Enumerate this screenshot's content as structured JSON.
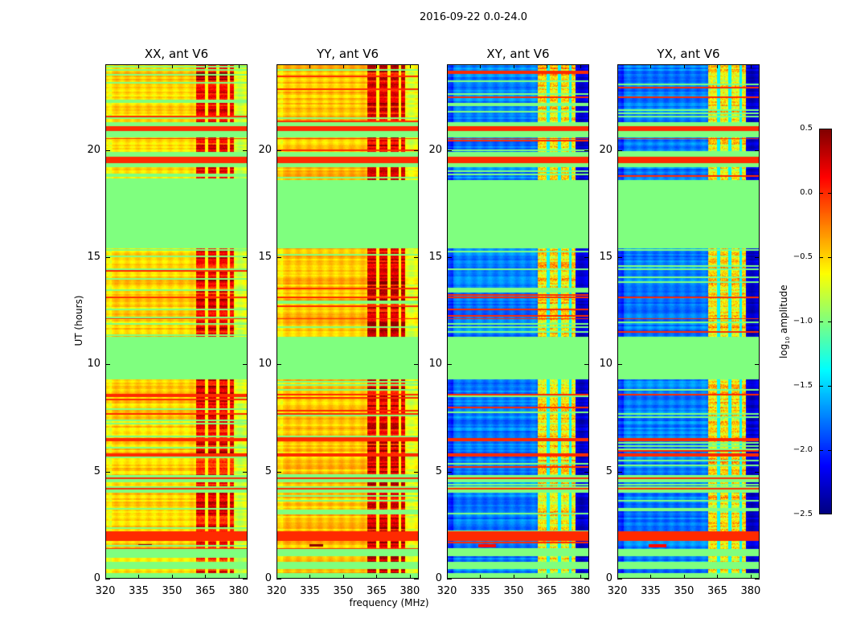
{
  "chart_data": {
    "type": "heatmap",
    "title": "2016-09-22 0.0-24.0",
    "xlabel": "frequency (MHz)",
    "ylabel": "UT (hours)",
    "xlim": [
      320,
      384
    ],
    "ylim": [
      0,
      24
    ],
    "xticks": [
      320,
      335,
      350,
      365,
      380
    ],
    "yticks": [
      0,
      5,
      10,
      15,
      20
    ],
    "colorbar": {
      "label_prefix": "log",
      "label_sub": "10",
      "label_suffix": " amplitude",
      "range": [
        -2.5,
        0.5
      ],
      "ticks": [
        "0.5",
        "0.0",
        "−0.5",
        "−1.0",
        "−1.5",
        "−2.0",
        "−2.5"
      ],
      "tick_values": [
        0.5,
        0.0,
        -0.5,
        -1.0,
        -1.5,
        -2.0,
        -2.5
      ],
      "colormap": "jet"
    },
    "flagged_value": -1.0,
    "band_value": 0.0,
    "flagged_intervals_hours": [
      [
        0,
        0.25
      ],
      [
        0.45,
        0.8
      ],
      [
        1.05,
        1.4
      ],
      [
        4.0,
        4.3
      ],
      [
        4.5,
        4.85
      ],
      [
        9.3,
        11.3
      ],
      [
        15.4,
        18.6
      ],
      [
        19.2,
        19.4
      ],
      [
        19.7,
        19.9
      ],
      [
        20.6,
        20.9
      ],
      [
        21.1,
        21.3
      ]
    ],
    "band_intervals_hours": [
      [
        1.75,
        2.2
      ],
      [
        4.15,
        4.22
      ],
      [
        4.65,
        4.72
      ],
      [
        5.7,
        5.85
      ],
      [
        6.4,
        6.55
      ],
      [
        8.55,
        8.62
      ],
      [
        12.1,
        12.15
      ],
      [
        13.1,
        13.15
      ],
      [
        19.4,
        19.7
      ],
      [
        20.9,
        21.1
      ],
      [
        20.5,
        20.56
      ]
    ],
    "rfi_band_mhz": [
      361,
      378
    ],
    "rfi_channel_gaps_mhz": [
      365.5,
      370.5,
      375.5
    ],
    "panels": [
      {
        "title": "XX, ant V6",
        "base_level": -0.5,
        "rfi_level": 0.05
      },
      {
        "title": "YY, ant V6",
        "base_level": -0.45,
        "rfi_level": 0.12
      },
      {
        "title": "XY, ant V6",
        "base_level": -1.75,
        "rfi_level": -0.65
      },
      {
        "title": "YX, ant V6",
        "base_level": -1.75,
        "rfi_level": -0.65
      }
    ]
  }
}
